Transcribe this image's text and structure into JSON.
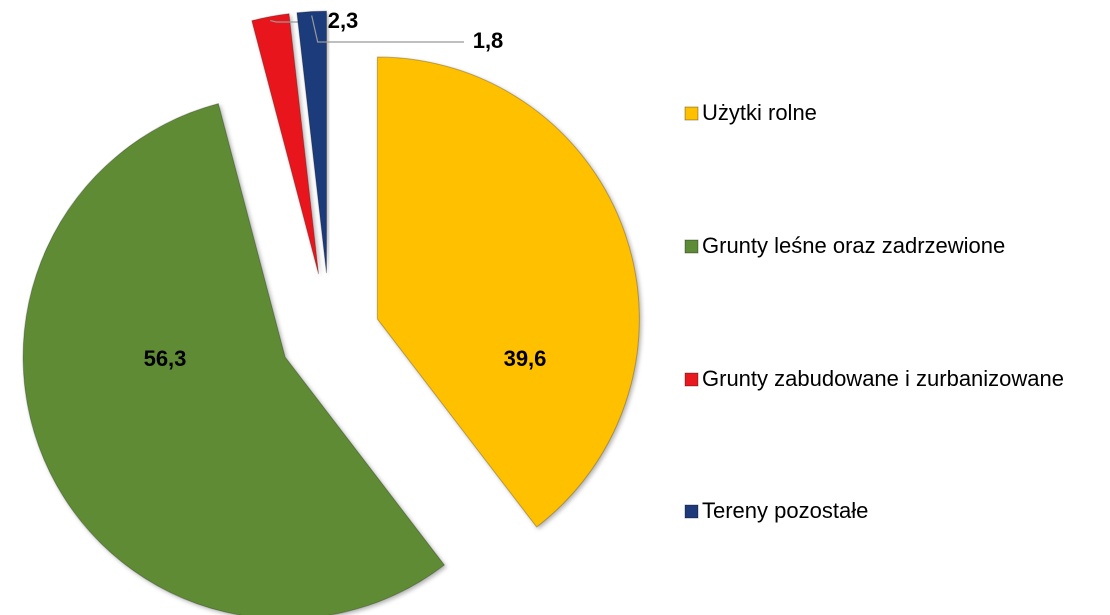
{
  "chart_data": {
    "type": "pie",
    "categories": [
      "Użytki rolne",
      "Grunty leśne oraz zadrzewione",
      "Grunty zabudowane i zurbanizowane",
      "Tereny pozostałe"
    ],
    "values": [
      39.6,
      56.3,
      2.3,
      1.8
    ],
    "value_labels": [
      "39,6",
      "56,3",
      "2,3",
      "1,8"
    ],
    "colors": [
      "#ffc000",
      "#5e8b36",
      "#e8191f",
      "#1f3a7a"
    ],
    "legend": "right"
  }
}
